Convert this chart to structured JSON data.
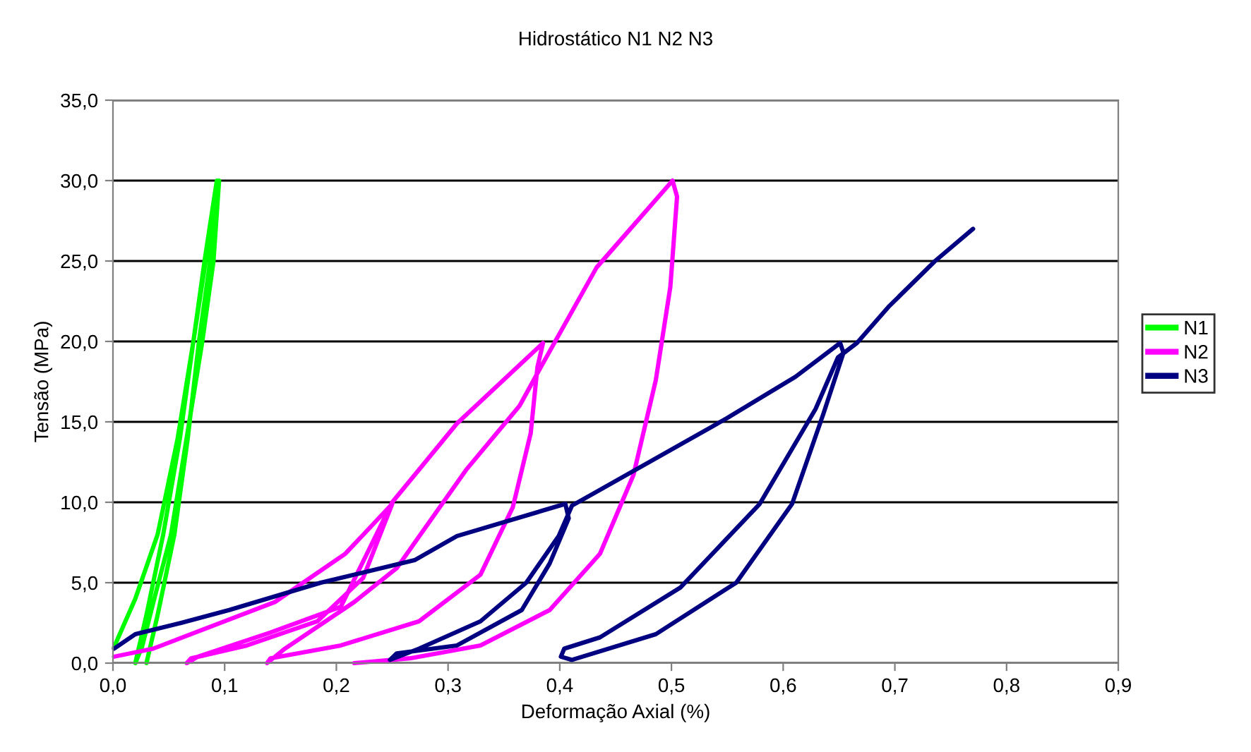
{
  "chart_data": {
    "type": "line",
    "title": "Hidrostático N1 N2 N3",
    "xlabel": "Deformação Axial (%)",
    "ylabel": "Tensão (MPa)",
    "xlim": [
      0,
      0.9
    ],
    "ylim": [
      0,
      35
    ],
    "xticks": [
      {
        "value": 0,
        "label": "0,0"
      },
      {
        "value": 0.1,
        "label": "0,1"
      },
      {
        "value": 0.2,
        "label": "0,2"
      },
      {
        "value": 0.3,
        "label": "0,3"
      },
      {
        "value": 0.4,
        "label": "0,4"
      },
      {
        "value": 0.5,
        "label": "0,5"
      },
      {
        "value": 0.6,
        "label": "0,6"
      },
      {
        "value": 0.7,
        "label": "0,7"
      },
      {
        "value": 0.8,
        "label": "0,8"
      },
      {
        "value": 0.9,
        "label": "0,9"
      }
    ],
    "yticks": [
      {
        "value": 0,
        "label": "0,0"
      },
      {
        "value": 5,
        "label": "5,0"
      },
      {
        "value": 10,
        "label": "10,0"
      },
      {
        "value": 15,
        "label": "15,0"
      },
      {
        "value": 20,
        "label": "20,0"
      },
      {
        "value": 25,
        "label": "25,0"
      },
      {
        "value": 30,
        "label": "30,0"
      },
      {
        "value": 35,
        "label": "35,0"
      }
    ],
    "grid": "y",
    "legend": "right",
    "marker": "none",
    "line_style": "solid",
    "series": [
      {
        "name": "N1",
        "color": "#00ff00",
        "x": [
          0.001,
          0.02,
          0.04,
          0.058,
          0.072,
          0.083,
          0.095,
          0.09,
          0.08,
          0.066,
          0.052,
          0.037,
          0.026,
          0.02,
          0.03,
          0.045,
          0.06,
          0.072,
          0.082,
          0.093,
          0.087,
          0.077,
          0.067,
          0.055,
          0.04,
          0.03
        ],
        "values": [
          1.0,
          4,
          8,
          14,
          20,
          25,
          30,
          25,
          20,
          14,
          8,
          4,
          1,
          0,
          3,
          8,
          14,
          20,
          25,
          30,
          25,
          20,
          14,
          8,
          3,
          0
        ]
      },
      {
        "name": "N2",
        "color": "#ff00ff",
        "x": [
          0.001,
          0.036,
          0.145,
          0.208,
          0.25,
          0.224,
          0.183,
          0.12,
          0.07,
          0.066,
          0.076,
          0.141,
          0.204,
          0.25,
          0.308,
          0.385,
          0.38,
          0.374,
          0.358,
          0.329,
          0.274,
          0.204,
          0.141,
          0.138,
          0.154,
          0.216,
          0.254,
          0.316,
          0.364,
          0.383,
          0.433,
          0.501,
          0.505,
          0.499,
          0.486,
          0.466,
          0.436,
          0.391,
          0.329,
          0.266,
          0.216
        ],
        "values": [
          0.4,
          0.9,
          3.8,
          6.8,
          9.9,
          5.3,
          2.6,
          1.1,
          0.3,
          0.0,
          0.4,
          1.9,
          3.5,
          10.0,
          14.9,
          19.9,
          18.4,
          14.3,
          9.7,
          5.5,
          2.6,
          1.1,
          0.3,
          0.0,
          0.9,
          3.8,
          5.9,
          12.0,
          16.0,
          18.4,
          24.6,
          30.0,
          29.0,
          23.4,
          17.6,
          11.7,
          6.8,
          3.3,
          1.1,
          0.3,
          0.0
        ]
      },
      {
        "name": "N3",
        "color": "#000080",
        "x": [
          0.001,
          0.02,
          0.061,
          0.104,
          0.186,
          0.27,
          0.308,
          0.405,
          0.408,
          0.391,
          0.366,
          0.308,
          0.254,
          0.248,
          0.274,
          0.329,
          0.37,
          0.399,
          0.411,
          0.429,
          0.549,
          0.611,
          0.651,
          0.654,
          0.636,
          0.608,
          0.558,
          0.486,
          0.411,
          0.401,
          0.404,
          0.436,
          0.508,
          0.579,
          0.629,
          0.649,
          0.666,
          0.695,
          0.736,
          0.77
        ],
        "values": [
          0.9,
          1.8,
          2.5,
          3.3,
          5.0,
          6.4,
          7.9,
          9.9,
          9.0,
          6.2,
          3.3,
          1.1,
          0.6,
          0.2,
          0.9,
          2.6,
          5.0,
          7.9,
          9.8,
          10.5,
          15.2,
          17.8,
          19.9,
          19.3,
          15.5,
          9.9,
          5.0,
          1.8,
          0.2,
          0.4,
          0.9,
          1.6,
          4.7,
          9.9,
          15.8,
          19.0,
          19.9,
          22.2,
          25.0,
          27.0
        ]
      }
    ]
  }
}
